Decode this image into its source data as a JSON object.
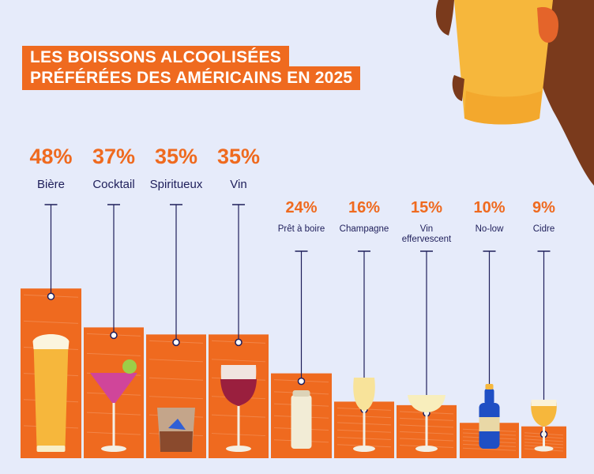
{
  "title": {
    "line1": "LES BOISSONS ALCOOLISÉES",
    "line2": "PRÉFÉRÉES DES AMÉRICAINS EN 2025"
  },
  "colors": {
    "background": "#e6ebfa",
    "accent_orange": "#ef6a1f",
    "label_navy": "#1e1e5a",
    "hand_skin": "#7a3a1c",
    "beer_yellow": "#f6b73c"
  },
  "chart_data": {
    "type": "bar",
    "title": "LES BOISSONS ALCOOLISÉES PRÉFÉRÉES DES AMÉRICAINS EN 2025",
    "categories": [
      "Bière",
      "Cocktail",
      "Spiritueux",
      "Vin",
      "Prêt à boire",
      "Champagne",
      "Vin effervescent",
      "No-low",
      "Cidre"
    ],
    "values": [
      48,
      37,
      35,
      35,
      24,
      16,
      15,
      10,
      9
    ],
    "value_labels": [
      "48%",
      "37%",
      "35%",
      "35%",
      "24%",
      "16%",
      "15%",
      "10%",
      "9%"
    ],
    "unit": "%",
    "ylim": [
      0,
      50
    ],
    "grid": false,
    "legend": "none",
    "icons": [
      "beer-glass-icon",
      "cocktail-glass-icon",
      "whisky-glass-icon",
      "wine-glass-icon",
      "can-icon",
      "champagne-flute-icon",
      "coupe-glass-icon",
      "bottle-icon",
      "cider-glass-icon"
    ]
  }
}
